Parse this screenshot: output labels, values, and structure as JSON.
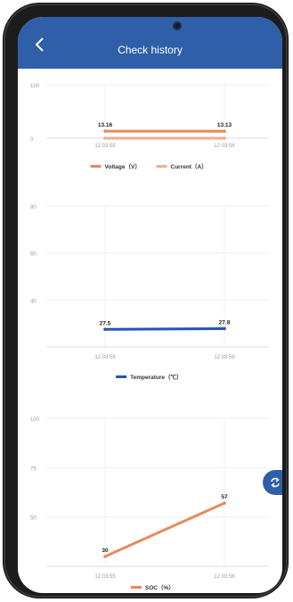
{
  "header": {
    "title": "Check history"
  },
  "icons": {
    "back": "chevron-left-icon",
    "switch": "swap-icon"
  },
  "colors": {
    "brand": "#2f5fa8",
    "orange": "#e8895c",
    "blue": "#2453b3"
  },
  "chart_data": [
    {
      "type": "line",
      "x": [
        "12 03:55",
        "12 03:56"
      ],
      "ylim": [
        0,
        100
      ],
      "yticks": [
        "0",
        "100"
      ],
      "series": [
        {
          "name": "Voltage（V）",
          "values": [
            13.16,
            13.13
          ],
          "color": "#e8895c",
          "labels": [
            "13.16",
            "13.13"
          ]
        },
        {
          "name": "Current（A）",
          "values": [
            0,
            0
          ],
          "color": "#f0ad8e"
        }
      ]
    },
    {
      "type": "line",
      "x": [
        "12 03:55",
        "12 03:56"
      ],
      "ylim": [
        20,
        80
      ],
      "yticks": [
        "40",
        "60",
        "80"
      ],
      "series": [
        {
          "name": "Temperature（℃）",
          "values": [
            27.5,
            27.8
          ],
          "color": "#2453b3",
          "labels": [
            "27.5",
            "27.8"
          ]
        }
      ]
    },
    {
      "type": "line",
      "x": [
        "12 03:55",
        "12 03:56"
      ],
      "ylim": [
        25,
        100
      ],
      "yticks": [
        "50",
        "75",
        "100"
      ],
      "series": [
        {
          "name": "SOC（%）",
          "values": [
            30,
            57
          ],
          "color": "#e8895c",
          "labels": [
            "30",
            "57"
          ]
        }
      ]
    }
  ]
}
